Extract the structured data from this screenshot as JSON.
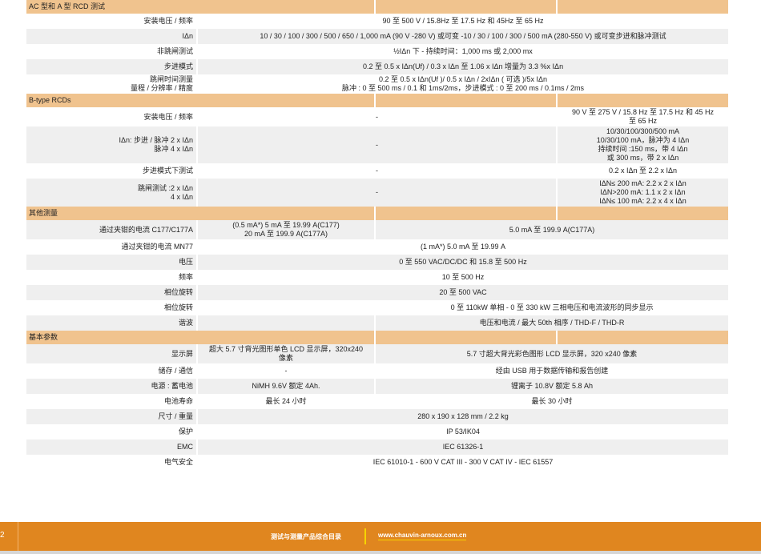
{
  "sections": [
    {
      "title": "AC 型和 A 型 RCD 测试",
      "rows": [
        {
          "label": "安装电压 / 频率",
          "cells": [
            {
              "text": "90 至 500 V / 15.8Hz 至 17.5 Hz 和 45Hz 至 65 Hz",
              "span": 3
            }
          ]
        },
        {
          "label": "IΔn",
          "cells": [
            {
              "text": "10 / 30 / 100 / 300 / 500 / 650 / 1,000 mA (90 V -280 V) 或可变 -10 / 30 / 100 / 300 / 500 mA (280-550 V) 或可变步进和脉冲测试",
              "span": 3
            }
          ]
        },
        {
          "label": "非跳闸测试",
          "cells": [
            {
              "text": "½IΔn 下 - 持续时间：1,000 ms 或 2,000 mx",
              "span": 3
            }
          ]
        },
        {
          "label": "步进模式",
          "cells": [
            {
              "text": "0.2 至 0.5 x IΔn(Uf) / 0.3 x IΔn 至 1.06 x IΔn 增量为 3.3 %x IΔn",
              "span": 3
            }
          ]
        },
        {
          "label": "跳闸时间测量\n量程 / 分辨率 / 精度",
          "cells": [
            {
              "text": "0.2 至 0.5 x IΔn(Uf )/ 0.5 x IΔn / 2xIΔn ( 可选 )/5x IΔn\n脉冲 : 0 至 500 ms / 0.1 和 1ms/2ms，步进模式 : 0 至 200 ms / 0.1ms / 2ms",
              "span": 3
            }
          ]
        }
      ]
    },
    {
      "title": "B-type RCDs",
      "rows": [
        {
          "label": "安装电压 / 频率",
          "cells": [
            {
              "text": "-",
              "span": 2
            },
            {
              "text": "90 V 至 275 V / 15.8 Hz 至 17.5 Hz 和 45 Hz\n至 65 Hz",
              "span": 1
            }
          ]
        },
        {
          "label": "IΔn: 步进 / 脉冲 2 x IΔn\n脉冲 4 x IΔn",
          "cells": [
            {
              "text": "-",
              "span": 2
            },
            {
              "text": "10/30/100/300/500 mA\n10/30/100 mA，脉冲为 4 IΔn\n持续时间 :150 ms，带 4 IΔn\n或 300 ms，带 2 x IΔn",
              "span": 1
            }
          ]
        },
        {
          "label": "步进模式下测试",
          "cells": [
            {
              "text": "-",
              "span": 2
            },
            {
              "text": "0.2 x IΔn 至 2.2 x IΔn",
              "span": 1
            }
          ]
        },
        {
          "label": "跳闸测试 :2 x IΔn\n4 x IΔn",
          "cells": [
            {
              "text": "-",
              "span": 2
            },
            {
              "text": "IΔN≤ 200 mA: 2.2 x 2 x IΔn\nIΔN>200 mA: 1.1 x 2 x IΔn\nIΔN≤ 100 mA: 2.2 x 4 x IΔn",
              "span": 1
            }
          ]
        }
      ]
    },
    {
      "title": "其他测量",
      "rows": [
        {
          "label": "通过夹钳的电流 C177/C177A",
          "cells": [
            {
              "text": "(0.5 mA*) 5 mA 至 19.99 A(C177)\n20 mA 至 199.9 A(C177A)",
              "span": 1
            },
            {
              "text": "5.0 mA 至 199.9 A(C177A)",
              "span": 2
            }
          ]
        },
        {
          "label": "通过夹钳的电流 MN77",
          "cells": [
            {
              "text": "(1 mA*) 5.0 mA 至 19.99 A",
              "span": 3
            }
          ]
        },
        {
          "label": "电压",
          "cells": [
            {
              "text": "0 至 550 VAC/DC/DC 和 15.8 至 500 Hz",
              "span": 3
            }
          ]
        },
        {
          "label": "频率",
          "cells": [
            {
              "text": "10 至 500 Hz",
              "span": 3
            }
          ]
        },
        {
          "label": "相位旋转",
          "cells": [
            {
              "text": "20 至 500 VAC",
              "span": 3
            }
          ]
        },
        {
          "label": "相位旋转",
          "cells": [
            {
              "text": "",
              "span": 1
            },
            {
              "text": "0 至 110kW 单相 - 0 至 330 kW 三相电压和电流波形的同步显示",
              "span": 2
            }
          ]
        },
        {
          "label": "谐波",
          "cells": [
            {
              "text": "",
              "span": 1
            },
            {
              "text": "电压和电流 / 最大 50th 相序 / THD-F / THD-R",
              "span": 2
            }
          ]
        }
      ]
    },
    {
      "title": "基本参数",
      "rows": [
        {
          "label": "显示屏",
          "cells": [
            {
              "text": "超大 5.7 寸背光图形单色 LCD 显示屏，320x240\n像素",
              "span": 1
            },
            {
              "text": "5.7 寸超大背光彩色图形 LCD 显示屏，320 x240 像素",
              "span": 2
            }
          ]
        },
        {
          "label": "储存 / 通信",
          "cells": [
            {
              "text": "-",
              "span": 1
            },
            {
              "text": "经由 USB 用于数据传输和报告创建",
              "span": 2
            }
          ]
        },
        {
          "label": "电源 : 蓄电池",
          "cells": [
            {
              "text": "NiMH 9.6V 额定 4Ah.",
              "span": 1
            },
            {
              "text": "锂离子 10.8V 额定 5.8 Ah",
              "span": 2
            }
          ]
        },
        {
          "label": "电池寿命",
          "cells": [
            {
              "text": "最长 24 小时",
              "span": 1
            },
            {
              "text": "最长 30 小时",
              "span": 2
            }
          ]
        },
        {
          "label": "尺寸 / 重量",
          "cells": [
            {
              "text": "280 x 190 x 128 mm / 2.2 kg",
              "span": 3
            }
          ]
        },
        {
          "label": "保护",
          "cells": [
            {
              "text": "IP 53/IK04",
              "span": 3
            }
          ]
        },
        {
          "label": "EMC",
          "cells": [
            {
              "text": "IEC 61326-1",
              "span": 3
            }
          ]
        },
        {
          "label": "电气安全",
          "cells": [
            {
              "text": "IEC 61010-1 - 600 V CAT III - 300 V CAT IV - IEC 61557",
              "span": 3
            }
          ]
        }
      ]
    }
  ],
  "footer": {
    "page_number": "2",
    "catalog_title": "测试与测量产品综合目录",
    "url": "www.chauvin-arnoux.com.cn"
  },
  "colors": {
    "section_header": "#f0c38e",
    "row_alt": "#efefef",
    "footer": "#e0861f",
    "accent_line": "#f6d400"
  }
}
